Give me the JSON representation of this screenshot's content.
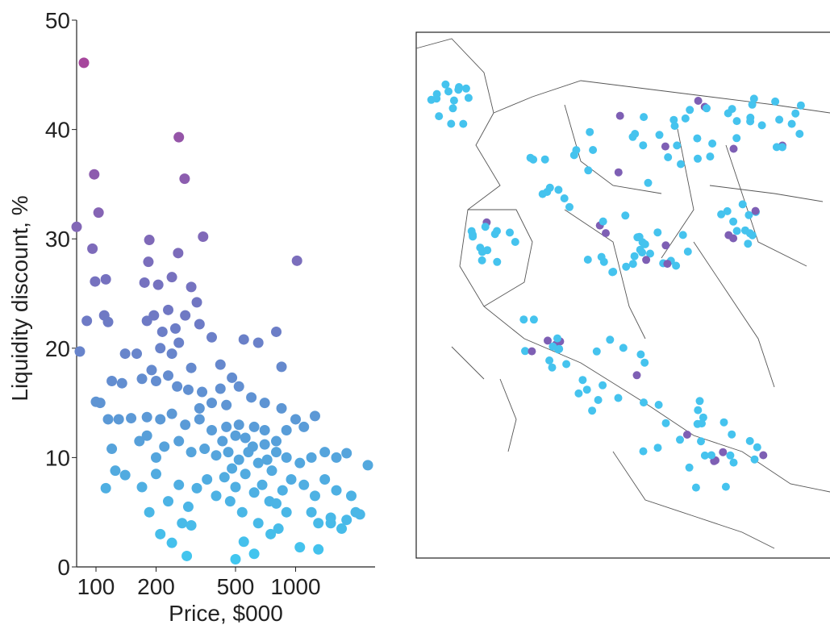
{
  "chart_data": {
    "type": "scatter",
    "x_label": "Price, $000",
    "y_label": "Liquidity discount, %",
    "xscale": "log",
    "xlim": [
      80,
      2500
    ],
    "ylim": [
      0,
      50
    ],
    "xticks": [
      100,
      200,
      500,
      1000
    ],
    "yticks": [
      0,
      10,
      20,
      30,
      40,
      50
    ],
    "colors": [
      "#40c8f0",
      "#6f78c4",
      "#a6469c"
    ],
    "x": [
      87,
      260,
      278,
      98,
      103,
      80,
      96,
      185,
      344,
      1016,
      183,
      258,
      99,
      112,
      83,
      90,
      110,
      115,
      175,
      205,
      240,
      300,
      320,
      280,
      230,
      195,
      180,
      215,
      250,
      330,
      380,
      210,
      240,
      260,
      160,
      140,
      190,
      230,
      300,
      420,
      480,
      550,
      650,
      800,
      850,
      120,
      135,
      170,
      200,
      255,
      290,
      340,
      420,
      520,
      600,
      700,
      850,
      100,
      105,
      115,
      130,
      150,
      180,
      210,
      240,
      280,
      330,
      380,
      450,
      500,
      560,
      620,
      700,
      800,
      900,
      1000,
      1100,
      1250,
      120,
      125,
      112,
      140,
      165,
      180,
      200,
      220,
      260,
      300,
      350,
      400,
      460,
      520,
      580,
      650,
      720,
      800,
      900,
      1050,
      1200,
      1400,
      1600,
      1800,
      2300,
      170,
      185,
      200,
      230,
      260,
      290,
      320,
      360,
      400,
      440,
      500,
      560,
      620,
      680,
      740,
      800,
      860,
      950,
      1100,
      1250,
      1400,
      1600,
      1900,
      2000,
      1200,
      1300,
      1500,
      1700,
      900,
      820,
      750,
      650,
      540,
      470,
      210,
      240,
      270,
      300,
      285,
      500,
      620,
      550,
      1050,
      1300,
      1500,
      2100,
      1800,
      330,
      450,
      520,
      380,
      430,
      610,
      700,
      760,
      480
    ],
    "y": [
      46.1,
      39.3,
      35.5,
      35.9,
      32.4,
      31.1,
      29.1,
      29.9,
      30.2,
      28.0,
      27.9,
      28.7,
      26.1,
      26.3,
      19.7,
      22.5,
      23.0,
      22.4,
      26,
      25.8,
      26.5,
      25.6,
      24.2,
      23,
      23.5,
      23,
      22.5,
      21.5,
      21.8,
      22.2,
      21,
      20,
      19.5,
      20.5,
      19.5,
      19.5,
      18,
      17.5,
      18.2,
      18.5,
      17.3,
      20.8,
      20.5,
      21.5,
      18.3,
      17,
      16.8,
      17.2,
      17,
      16.5,
      16.2,
      16,
      16.3,
      16.5,
      15.5,
      15,
      14.5,
      15.1,
      15,
      13.5,
      13.5,
      13.6,
      13.7,
      13.5,
      14,
      13,
      13.5,
      12.5,
      12.8,
      12,
      11.8,
      12.8,
      12.5,
      11.5,
      12.5,
      13.5,
      12.8,
      13.8,
      10.8,
      8.8,
      7.2,
      8.4,
      11.5,
      12,
      10,
      11,
      11.5,
      10.5,
      10.8,
      10.2,
      10.5,
      9.8,
      10.5,
      9.5,
      9.8,
      10.5,
      10,
      9.5,
      10,
      10.5,
      10,
      10.4,
      9.3,
      7.3,
      5,
      8.5,
      6,
      7.5,
      5.5,
      7.2,
      8,
      6.5,
      8.2,
      7.3,
      8.5,
      6.8,
      7.5,
      6,
      5.8,
      7,
      8,
      7.5,
      6.5,
      8,
      7,
      6.5,
      5,
      5,
      4,
      4.5,
      3.5,
      5,
      3.5,
      3,
      4,
      5,
      6,
      3,
      2.2,
      4,
      3.8,
      1,
      0.7,
      1.2,
      2.3,
      1.8,
      1.6,
      4,
      4.8,
      4.3,
      14.5,
      14.8,
      13,
      15,
      11.5,
      11,
      11.2,
      8.8,
      9.0
    ]
  }
}
